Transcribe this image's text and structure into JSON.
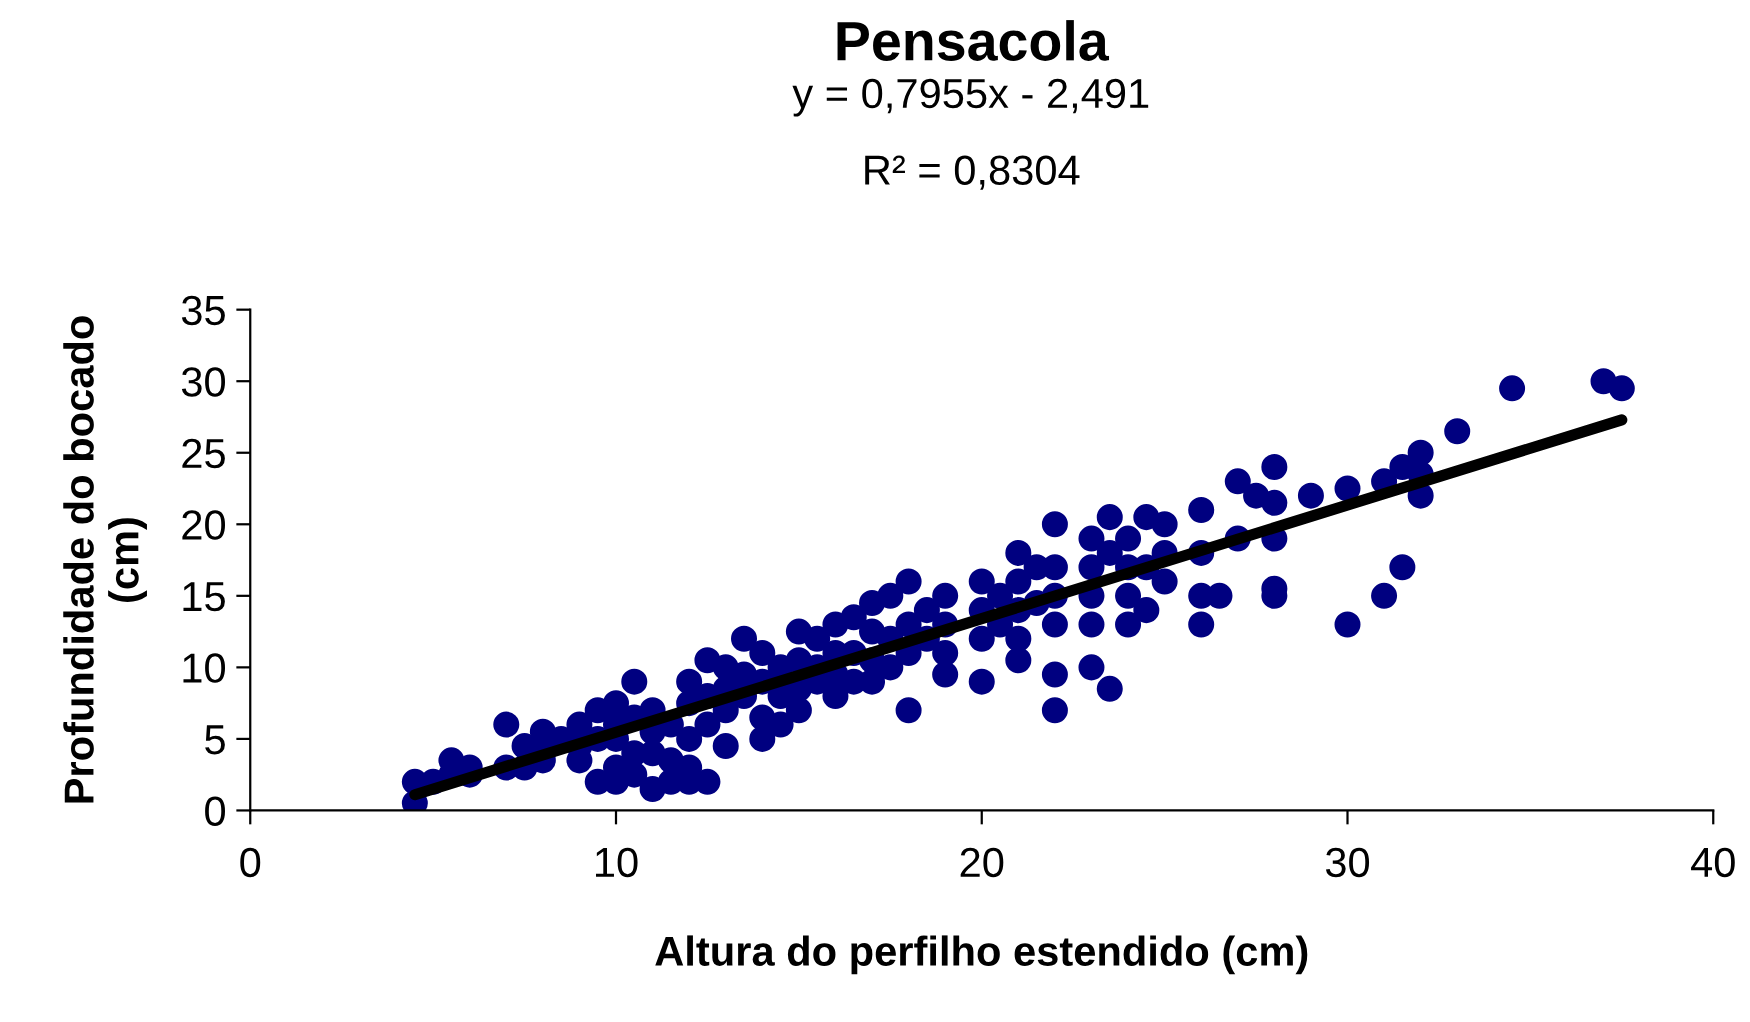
{
  "chart_data": {
    "type": "scatter",
    "title": "Pensacola",
    "subtitle": "y = 0,7955x - 2,491",
    "annotations": [
      "R² = 0,8304"
    ],
    "xlabel": "Altura do perfilho estendido (cm)",
    "ylabel": "Profundidade do bocado\n(cm)",
    "xlim": [
      0,
      40
    ],
    "xticks": [
      0,
      10,
      20,
      30,
      40
    ],
    "ylim": [
      0,
      35
    ],
    "yticks": [
      0,
      5,
      10,
      15,
      20,
      25,
      30,
      35
    ],
    "grid": false,
    "legend": false,
    "marker": "circle",
    "series": [
      {
        "color": "#000080",
        "x": [
          4.5,
          4.5,
          5,
          5.5,
          5.5,
          6,
          6,
          7,
          7,
          7.5,
          7.5,
          8,
          8,
          8,
          8.5,
          9,
          9,
          9,
          9.5,
          9.5,
          9.5,
          10,
          10,
          10,
          10,
          10,
          10.5,
          10.5,
          10.5,
          10.5,
          11,
          11,
          11,
          11,
          11.5,
          11.5,
          11.5,
          12,
          12,
          12,
          12,
          12,
          12.5,
          12.5,
          12.5,
          12.5,
          13,
          13,
          13,
          13,
          13.5,
          13.5,
          13.5,
          14,
          14,
          14,
          14,
          14.5,
          14.5,
          14.5,
          15,
          15,
          15,
          15,
          15.5,
          15.5,
          15.5,
          16,
          16,
          16,
          16,
          16.5,
          16.5,
          16.5,
          17,
          17,
          17,
          17,
          17.5,
          17.5,
          17.5,
          18,
          18,
          18,
          18,
          18.5,
          18.5,
          19,
          19,
          19,
          19,
          20,
          20,
          20,
          20,
          20.5,
          20.5,
          21,
          21,
          21,
          21,
          21,
          21.5,
          21.5,
          22,
          22,
          22,
          22,
          22,
          22,
          23,
          23,
          23,
          23,
          23,
          23.5,
          23.5,
          23.5,
          24,
          24,
          24,
          24,
          24.5,
          24.5,
          24.5,
          25,
          25,
          25,
          26,
          26,
          26,
          26,
          26.5,
          27,
          27,
          27.5,
          28,
          28,
          28,
          28,
          28,
          29,
          30,
          30,
          31,
          31,
          31.5,
          31.5,
          32,
          32,
          32,
          33,
          34.5,
          37,
          37.5
        ],
        "values": [
          2,
          0.5,
          2,
          3.5,
          2.5,
          3,
          2.5,
          6,
          3,
          4.5,
          3,
          5.5,
          4,
          3.5,
          5,
          6,
          4.5,
          3.5,
          7,
          5,
          2,
          7.5,
          6,
          5,
          3,
          2,
          9,
          6.5,
          4,
          2.5,
          7,
          5.5,
          4,
          1.5,
          6,
          3.5,
          2,
          9,
          7.5,
          5,
          3,
          2,
          10.5,
          8,
          6,
          2,
          10,
          8.5,
          7,
          4.5,
          12,
          9.5,
          8,
          11,
          9,
          6.5,
          5,
          10,
          8,
          6,
          12.5,
          10.5,
          8.5,
          7,
          12,
          10,
          9,
          13,
          11,
          9.5,
          8,
          13.5,
          11,
          9,
          14.5,
          12.5,
          10.5,
          9,
          15,
          12,
          10,
          16,
          13,
          11,
          7,
          14,
          12,
          15,
          13,
          11,
          9.5,
          16,
          14,
          12,
          9,
          15,
          13,
          18,
          16,
          14,
          12,
          10.5,
          17,
          14.5,
          20,
          17,
          15,
          13,
          9.5,
          7,
          19,
          17,
          15,
          13,
          10,
          20.5,
          18,
          8.5,
          19,
          17,
          15,
          13,
          20.5,
          17,
          14,
          20,
          18,
          16,
          21,
          18,
          15,
          13,
          15,
          23,
          19,
          22,
          24,
          21.5,
          19,
          15.5,
          15,
          22,
          22.5,
          13,
          23,
          15,
          24,
          17,
          25,
          23.5,
          22,
          26.5,
          29.5,
          30,
          29.5
        ]
      },
      {
        "type": "line",
        "color": "#000000",
        "marker": "none",
        "x": [
          4.5,
          37.5
        ],
        "values": [
          1.1,
          27.3
        ]
      }
    ]
  }
}
